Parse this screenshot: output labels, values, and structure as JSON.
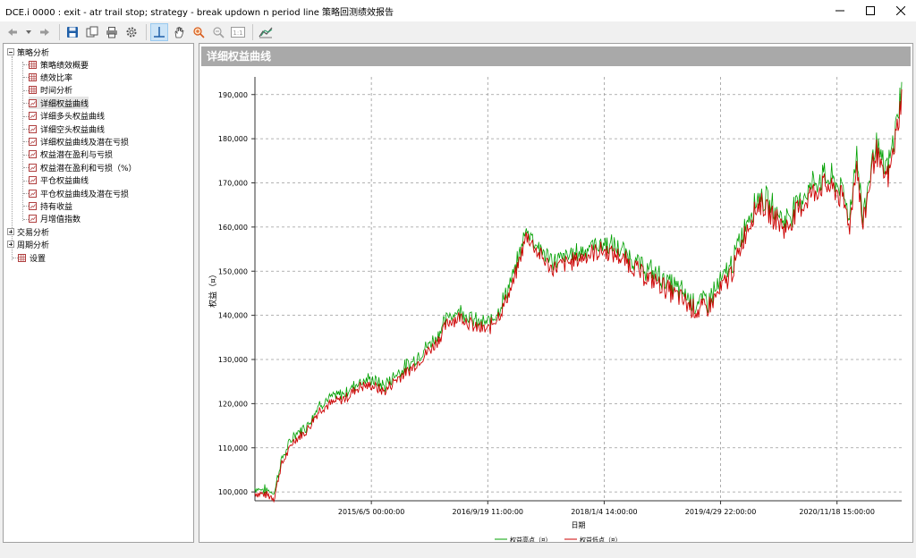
{
  "window": {
    "title": "DCE.i 0000 : exit - atr trail stop; strategy - break updown n period line 策略回测绩效报告"
  },
  "toolbar": {
    "buttons": [
      "back",
      "dropdown",
      "forward",
      "save",
      "copy",
      "print",
      "settings",
      "crosshair",
      "pan",
      "zoom-in",
      "zoom-out",
      "reset-zoom",
      "export"
    ]
  },
  "tree": {
    "group_strategy": "策略分析",
    "items": [
      "策略绩效概要",
      "绩效比率",
      "时间分析",
      "详细权益曲线",
      "详细多头权益曲线",
      "详细空头权益曲线",
      "详细权益曲线及潜在亏损",
      "权益潜在盈利与亏损",
      "权益潜在盈利和亏损（%）",
      "平仓权益曲线",
      "平仓权益曲线及潜在亏损",
      "持有收益",
      "月增值指数"
    ],
    "group_trade": "交易分析",
    "group_period": "周期分析",
    "settings": "设置"
  },
  "panel": {
    "title": "详细权益曲线"
  },
  "chart_data": {
    "type": "line",
    "title": "",
    "xlabel": "日期",
    "ylabel": "权益（¤）",
    "ylim": [
      98000,
      194000
    ],
    "yticks": [
      100000,
      110000,
      120000,
      130000,
      140000,
      150000,
      160000,
      170000,
      180000,
      190000
    ],
    "ytick_labels": [
      "100,000",
      "110,000",
      "120,000",
      "130,000",
      "140,000",
      "150,000",
      "160,000",
      "170,000",
      "180,000",
      "190,000"
    ],
    "xtick_labels": [
      "2015/6/5 00:00:00",
      "2016/9/19 11:00:00",
      "2018/1/4 14:00:00",
      "2019/4/29 22:00:00",
      "2020/11/18 15:00:00"
    ],
    "xtick_positions": [
      0.18,
      0.36,
      0.54,
      0.72,
      0.9
    ],
    "grid": true,
    "legend": "bottom",
    "series": [
      {
        "name": "权益高点（¤）",
        "color": "#00a000"
      },
      {
        "name": "权益低点（¤）",
        "color": "#cc0000"
      }
    ],
    "x": [
      0,
      0.02,
      0.03,
      0.04,
      0.06,
      0.08,
      0.1,
      0.12,
      0.14,
      0.16,
      0.18,
      0.2,
      0.22,
      0.24,
      0.26,
      0.28,
      0.3,
      0.32,
      0.34,
      0.36,
      0.38,
      0.4,
      0.42,
      0.44,
      0.46,
      0.48,
      0.5,
      0.52,
      0.54,
      0.56,
      0.58,
      0.6,
      0.62,
      0.64,
      0.66,
      0.68,
      0.7,
      0.72,
      0.74,
      0.76,
      0.78,
      0.8,
      0.82,
      0.84,
      0.86,
      0.88,
      0.9,
      0.91,
      0.92,
      0.93,
      0.94,
      0.95,
      0.96,
      0.97,
      0.98,
      0.99,
      1.0
    ],
    "values": [
      100000,
      99500,
      99000,
      106000,
      112000,
      114000,
      119000,
      120500,
      121500,
      124000,
      124500,
      123000,
      126000,
      128000,
      131000,
      134000,
      139000,
      140000,
      137500,
      137000,
      141000,
      148000,
      158500,
      154000,
      151000,
      152000,
      153000,
      154500,
      155000,
      154000,
      152000,
      149500,
      148000,
      146000,
      144000,
      141500,
      142000,
      146000,
      151000,
      160000,
      166000,
      163000,
      160000,
      164000,
      168000,
      170000,
      168500,
      166000,
      161000,
      176000,
      160000,
      170000,
      178000,
      172000,
      172000,
      180000,
      190000
    ]
  }
}
